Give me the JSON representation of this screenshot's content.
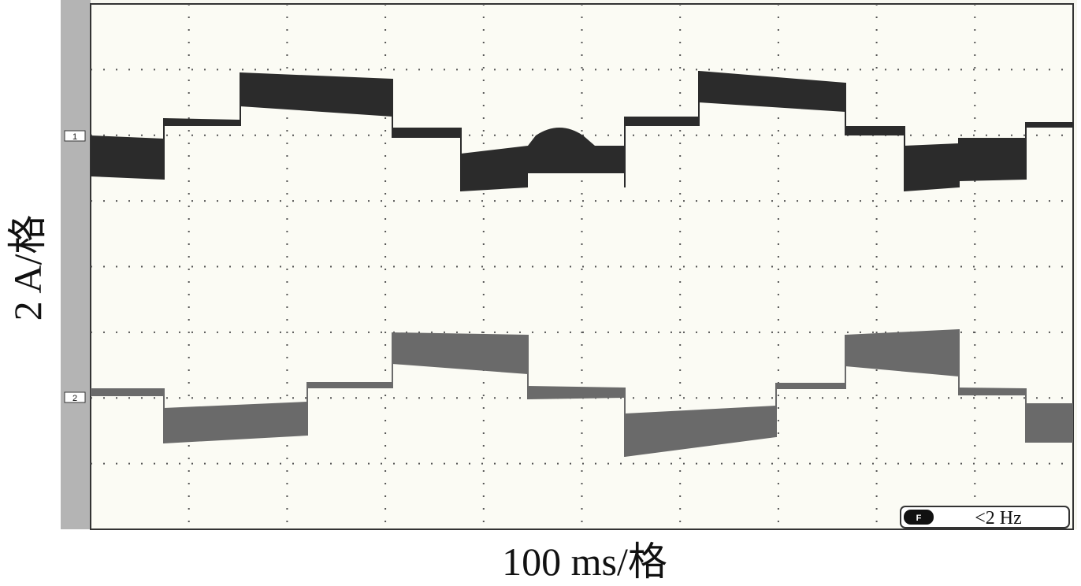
{
  "y_axis_label": "2 A/格",
  "x_axis_label": "100 ms/格",
  "channel_markers": [
    "1",
    "2"
  ],
  "filter_badge": {
    "icon": "F",
    "text": "<2 Hz"
  }
}
